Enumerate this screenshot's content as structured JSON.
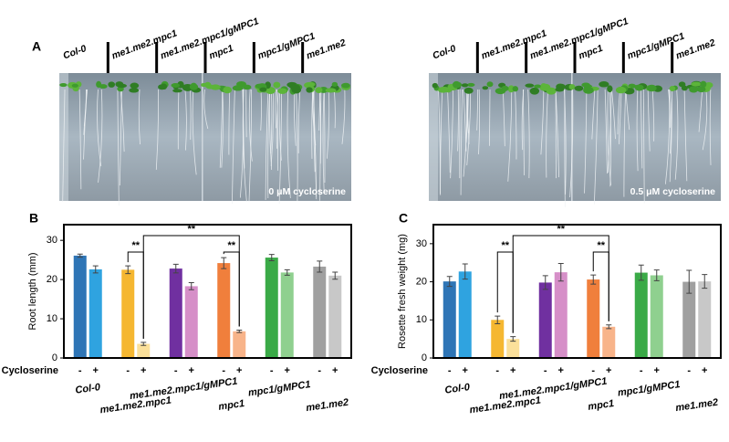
{
  "panel_a": {
    "label": "A",
    "captions": [
      "0 μM cycloserine",
      "0.5 μM  cycloserine"
    ]
  },
  "chart_data": [
    {
      "type": "bar",
      "panel_label": "B",
      "ylabel": "Root length (mm)",
      "treatment_label": "Cycloserine",
      "categories": [
        "Col-0",
        "me1.me2.mpc1",
        "me1.me2.mpc1/gMPC1",
        "mpc1",
        "mpc1/gMPC1",
        "me1.me2"
      ],
      "series": [
        {
          "name": "-",
          "colors": [
            "#2e75b6",
            "#f5b731",
            "#7030a0",
            "#f07f3c",
            "#3aaa47",
            "#a0a0a0"
          ],
          "values": [
            26.1,
            22.5,
            22.8,
            24.2,
            25.6,
            23.3
          ],
          "errors": [
            0.4,
            1.0,
            1.1,
            1.4,
            0.8,
            1.4
          ]
        },
        {
          "name": "+",
          "colors": [
            "#2fa3e0",
            "#fbe09a",
            "#d68fc8",
            "#f8b48a",
            "#8fd08f",
            "#c8c8c8"
          ],
          "values": [
            22.6,
            3.6,
            18.3,
            6.8,
            21.8,
            21.0
          ],
          "errors": [
            0.9,
            0.4,
            0.9,
            0.3,
            0.7,
            0.9
          ]
        }
      ],
      "annotations": [
        "**",
        "**",
        "**"
      ],
      "ylim": [
        0,
        34
      ],
      "yticks": [
        0,
        10,
        20,
        30
      ]
    },
    {
      "type": "bar",
      "panel_label": "C",
      "ylabel": "Rosette fresh weight (mg)",
      "treatment_label": "Cycloserine",
      "categories": [
        "Col-0",
        "me1.me2.mpc1",
        "me1.me2.mpc1/gMPC1",
        "mpc1",
        "mpc1/gMPC1",
        "me1.me2"
      ],
      "series": [
        {
          "name": "-",
          "colors": [
            "#2e75b6",
            "#f5b731",
            "#7030a0",
            "#f07f3c",
            "#3aaa47",
            "#a0a0a0"
          ],
          "values": [
            20.1,
            10.0,
            19.8,
            20.6,
            22.4,
            20.0
          ],
          "errors": [
            1.3,
            1.0,
            1.8,
            1.2,
            2.0,
            3.0
          ]
        },
        {
          "name": "+",
          "colors": [
            "#2fa3e0",
            "#fbe09a",
            "#d68fc8",
            "#f8b48a",
            "#8fd08f",
            "#c8c8c8"
          ],
          "values": [
            22.7,
            5.0,
            22.5,
            8.2,
            21.7,
            20.1
          ],
          "errors": [
            2.0,
            0.6,
            2.3,
            0.5,
            1.4,
            1.8
          ]
        }
      ],
      "annotations": [
        "**",
        "**",
        "**"
      ],
      "ylim": [
        0,
        35
      ],
      "yticks": [
        0,
        10,
        20,
        30
      ]
    }
  ]
}
